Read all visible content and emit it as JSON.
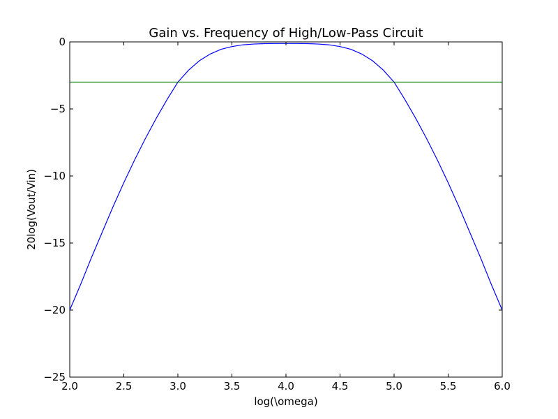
{
  "chart_data": {
    "type": "line",
    "title": "Gain vs. Frequency of High/Low-Pass Circuit",
    "xlabel": "log(\\omega)",
    "ylabel": "20log(Vout/Vin)",
    "xlim": [
      2.0,
      6.0
    ],
    "ylim": [
      -25,
      0
    ],
    "xticks": [
      2.0,
      2.5,
      3.0,
      3.5,
      4.0,
      4.5,
      5.0,
      5.5,
      6.0
    ],
    "xtick_labels": [
      "2.0",
      "2.5",
      "3.0",
      "3.5",
      "4.0",
      "4.5",
      "5.0",
      "5.5",
      "6.0"
    ],
    "yticks": [
      0,
      -5,
      -10,
      -15,
      -20,
      -25
    ],
    "ytick_labels": [
      "0",
      "−5",
      "−10",
      "−15",
      "−20",
      "−25"
    ],
    "grid": false,
    "series": [
      {
        "color": "#0000ff",
        "x": [
          2.0,
          2.1,
          2.2,
          2.3,
          2.4,
          2.5,
          2.6,
          2.7,
          2.8,
          2.9,
          3.0,
          3.1,
          3.2,
          3.3,
          3.4,
          3.5,
          3.6,
          3.7,
          3.8,
          3.9,
          4.0,
          4.1,
          4.2,
          4.3,
          4.4,
          4.5,
          4.6,
          4.7,
          4.8,
          4.9,
          5.0,
          5.1,
          5.2,
          5.3,
          5.4,
          5.5,
          5.6,
          5.7,
          5.8,
          5.9,
          6.0
        ],
        "y": [
          -20.0,
          -18.1,
          -16.1,
          -14.2,
          -12.3,
          -10.5,
          -8.8,
          -7.2,
          -5.7,
          -4.3,
          -3.0,
          -2.1,
          -1.4,
          -0.9,
          -0.55,
          -0.35,
          -0.22,
          -0.16,
          -0.13,
          -0.12,
          -0.12,
          -0.12,
          -0.13,
          -0.16,
          -0.22,
          -0.35,
          -0.55,
          -0.9,
          -1.4,
          -2.1,
          -3.0,
          -4.3,
          -5.7,
          -7.2,
          -8.8,
          -10.5,
          -12.3,
          -14.2,
          -16.1,
          -18.1,
          -20.0
        ]
      },
      {
        "color": "#008000",
        "x": [
          2.0,
          6.0
        ],
        "y": [
          -3.0,
          -3.0
        ]
      }
    ]
  }
}
